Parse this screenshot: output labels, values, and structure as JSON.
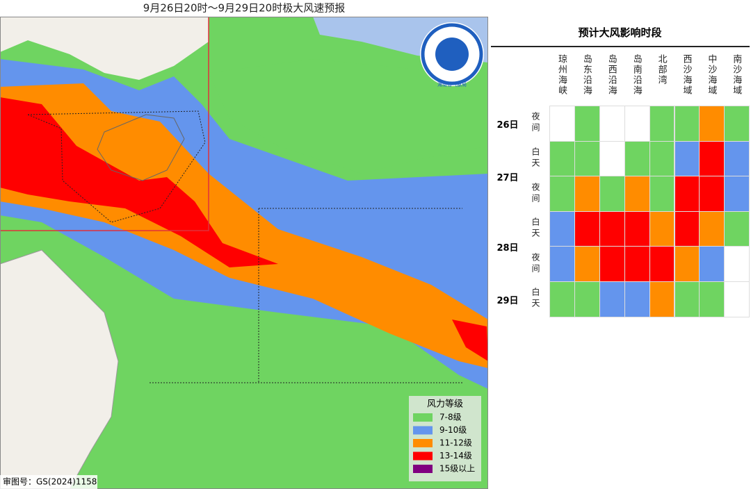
{
  "map": {
    "title": "9月26日20时～9月29日20时极大风速预报",
    "logo_text": "海南省气象局",
    "credit": "审图号：GS(2024)1158",
    "legend": {
      "title": "风力等级",
      "items": [
        {
          "label": "7-8级",
          "color": "#6fd461"
        },
        {
          "label": "9-10级",
          "color": "#6495ed"
        },
        {
          "label": "11-12级",
          "color": "#ff8c00"
        },
        {
          "label": "13-14级",
          "color": "#ff0000"
        },
        {
          "label": "15级以上",
          "color": "#800080"
        }
      ]
    }
  },
  "table": {
    "title": "预计大风影响时段",
    "columns": [
      "琼州海峡",
      "岛东沿海",
      "岛西沿海",
      "岛南沿海",
      "北部湾",
      "西沙海域",
      "中沙海域",
      "南沙海域"
    ],
    "days": [
      {
        "label": "26日",
        "rows": [
          {
            "period": "夜间",
            "cells": [
              "#ffffff",
              "#6fd461",
              "#ffffff",
              "#ffffff",
              "#6fd461",
              "#6fd461",
              "#ff8c00",
              "#6fd461"
            ]
          }
        ]
      },
      {
        "label": "27日",
        "rows": [
          {
            "period": "白天",
            "cells": [
              "#6fd461",
              "#6fd461",
              "#ffffff",
              "#6fd461",
              "#6fd461",
              "#6495ed",
              "#ff0000",
              "#6495ed"
            ]
          },
          {
            "period": "夜间",
            "cells": [
              "#6fd461",
              "#ff8c00",
              "#6fd461",
              "#ff8c00",
              "#6fd461",
              "#ff0000",
              "#ff0000",
              "#6495ed"
            ]
          }
        ]
      },
      {
        "label": "28日",
        "rows": [
          {
            "period": "白天",
            "cells": [
              "#6495ed",
              "#ff0000",
              "#ff0000",
              "#ff0000",
              "#ff8c00",
              "#ff0000",
              "#ff8c00",
              "#6fd461"
            ]
          },
          {
            "period": "夜间",
            "cells": [
              "#6495ed",
              "#ff8c00",
              "#ff0000",
              "#ff0000",
              "#ff0000",
              "#ff8c00",
              "#6495ed",
              "#ffffff"
            ]
          }
        ]
      },
      {
        "label": "29日",
        "rows": [
          {
            "period": "白天",
            "cells": [
              "#6fd461",
              "#6fd461",
              "#6495ed",
              "#6495ed",
              "#ff8c00",
              "#6fd461",
              "#6fd461",
              "#ffffff"
            ]
          }
        ]
      }
    ]
  }
}
